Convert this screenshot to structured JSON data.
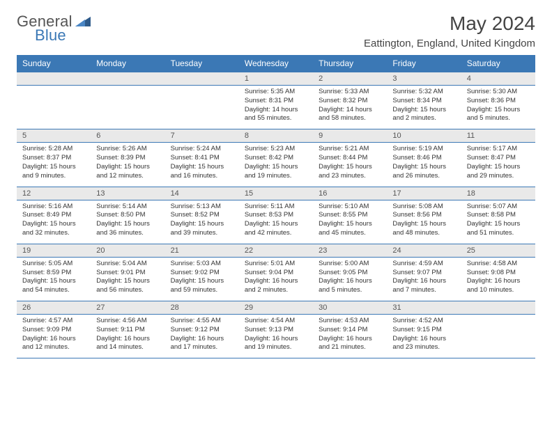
{
  "brand": {
    "part1": "General",
    "part2": "Blue"
  },
  "title": {
    "month": "May 2024",
    "location": "Eattington, England, United Kingdom"
  },
  "colors": {
    "header_bg": "#3b78b5",
    "header_fg": "#ffffff",
    "daynum_bg": "#e9e9e9",
    "rule": "#3b78b5"
  },
  "day_labels": [
    "Sunday",
    "Monday",
    "Tuesday",
    "Wednesday",
    "Thursday",
    "Friday",
    "Saturday"
  ],
  "weeks": [
    [
      null,
      null,
      null,
      {
        "n": "1",
        "sunrise": "5:35 AM",
        "sunset": "8:31 PM",
        "dl": "14 hours and 55 minutes."
      },
      {
        "n": "2",
        "sunrise": "5:33 AM",
        "sunset": "8:32 PM",
        "dl": "14 hours and 58 minutes."
      },
      {
        "n": "3",
        "sunrise": "5:32 AM",
        "sunset": "8:34 PM",
        "dl": "15 hours and 2 minutes."
      },
      {
        "n": "4",
        "sunrise": "5:30 AM",
        "sunset": "8:36 PM",
        "dl": "15 hours and 5 minutes."
      }
    ],
    [
      {
        "n": "5",
        "sunrise": "5:28 AM",
        "sunset": "8:37 PM",
        "dl": "15 hours and 9 minutes."
      },
      {
        "n": "6",
        "sunrise": "5:26 AM",
        "sunset": "8:39 PM",
        "dl": "15 hours and 12 minutes."
      },
      {
        "n": "7",
        "sunrise": "5:24 AM",
        "sunset": "8:41 PM",
        "dl": "15 hours and 16 minutes."
      },
      {
        "n": "8",
        "sunrise": "5:23 AM",
        "sunset": "8:42 PM",
        "dl": "15 hours and 19 minutes."
      },
      {
        "n": "9",
        "sunrise": "5:21 AM",
        "sunset": "8:44 PM",
        "dl": "15 hours and 23 minutes."
      },
      {
        "n": "10",
        "sunrise": "5:19 AM",
        "sunset": "8:46 PM",
        "dl": "15 hours and 26 minutes."
      },
      {
        "n": "11",
        "sunrise": "5:17 AM",
        "sunset": "8:47 PM",
        "dl": "15 hours and 29 minutes."
      }
    ],
    [
      {
        "n": "12",
        "sunrise": "5:16 AM",
        "sunset": "8:49 PM",
        "dl": "15 hours and 32 minutes."
      },
      {
        "n": "13",
        "sunrise": "5:14 AM",
        "sunset": "8:50 PM",
        "dl": "15 hours and 36 minutes."
      },
      {
        "n": "14",
        "sunrise": "5:13 AM",
        "sunset": "8:52 PM",
        "dl": "15 hours and 39 minutes."
      },
      {
        "n": "15",
        "sunrise": "5:11 AM",
        "sunset": "8:53 PM",
        "dl": "15 hours and 42 minutes."
      },
      {
        "n": "16",
        "sunrise": "5:10 AM",
        "sunset": "8:55 PM",
        "dl": "15 hours and 45 minutes."
      },
      {
        "n": "17",
        "sunrise": "5:08 AM",
        "sunset": "8:56 PM",
        "dl": "15 hours and 48 minutes."
      },
      {
        "n": "18",
        "sunrise": "5:07 AM",
        "sunset": "8:58 PM",
        "dl": "15 hours and 51 minutes."
      }
    ],
    [
      {
        "n": "19",
        "sunrise": "5:05 AM",
        "sunset": "8:59 PM",
        "dl": "15 hours and 54 minutes."
      },
      {
        "n": "20",
        "sunrise": "5:04 AM",
        "sunset": "9:01 PM",
        "dl": "15 hours and 56 minutes."
      },
      {
        "n": "21",
        "sunrise": "5:03 AM",
        "sunset": "9:02 PM",
        "dl": "15 hours and 59 minutes."
      },
      {
        "n": "22",
        "sunrise": "5:01 AM",
        "sunset": "9:04 PM",
        "dl": "16 hours and 2 minutes."
      },
      {
        "n": "23",
        "sunrise": "5:00 AM",
        "sunset": "9:05 PM",
        "dl": "16 hours and 5 minutes."
      },
      {
        "n": "24",
        "sunrise": "4:59 AM",
        "sunset": "9:07 PM",
        "dl": "16 hours and 7 minutes."
      },
      {
        "n": "25",
        "sunrise": "4:58 AM",
        "sunset": "9:08 PM",
        "dl": "16 hours and 10 minutes."
      }
    ],
    [
      {
        "n": "26",
        "sunrise": "4:57 AM",
        "sunset": "9:09 PM",
        "dl": "16 hours and 12 minutes."
      },
      {
        "n": "27",
        "sunrise": "4:56 AM",
        "sunset": "9:11 PM",
        "dl": "16 hours and 14 minutes."
      },
      {
        "n": "28",
        "sunrise": "4:55 AM",
        "sunset": "9:12 PM",
        "dl": "16 hours and 17 minutes."
      },
      {
        "n": "29",
        "sunrise": "4:54 AM",
        "sunset": "9:13 PM",
        "dl": "16 hours and 19 minutes."
      },
      {
        "n": "30",
        "sunrise": "4:53 AM",
        "sunset": "9:14 PM",
        "dl": "16 hours and 21 minutes."
      },
      {
        "n": "31",
        "sunrise": "4:52 AM",
        "sunset": "9:15 PM",
        "dl": "16 hours and 23 minutes."
      },
      null
    ]
  ],
  "labels": {
    "sunrise": "Sunrise: ",
    "sunset": "Sunset: ",
    "daylight": "Daylight: "
  }
}
